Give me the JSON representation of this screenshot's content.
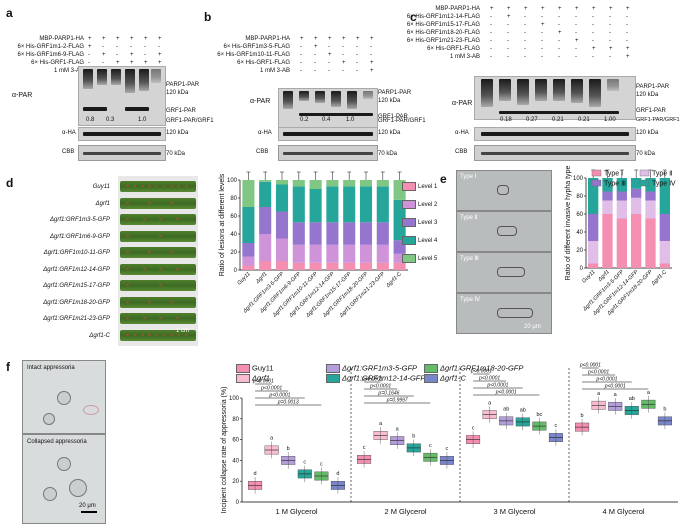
{
  "panel_a": {
    "letter": "a",
    "rows": [
      {
        "label": "MBP-PARP1-HA",
        "signs": [
          "+",
          "+",
          "+",
          "+",
          "+",
          "+"
        ]
      },
      {
        "label": "6× His-GRF1m1-2-FLAG",
        "signs": [
          "+",
          "-",
          "-",
          "-",
          "-",
          "-"
        ]
      },
      {
        "label": "6× His-GRF1m6-9-FLAG",
        "signs": [
          "-",
          "+",
          "-",
          "+",
          "-",
          "+"
        ]
      },
      {
        "label": "6× His-GRF1-FLAG",
        "signs": [
          "-",
          "-",
          "+",
          "+",
          "+",
          "+"
        ]
      },
      {
        "label": "1 mM 3-AB",
        "signs": [
          "-",
          "-",
          "-",
          "-",
          "+",
          "-"
        ]
      }
    ],
    "ylabel": "α-PAR",
    "right_labels": [
      "PARP1-PAR",
      "120 kDa",
      "GRF1-PAR",
      "GRF1-PAR/GRF1"
    ],
    "ratios": [
      "0.8",
      "0.3",
      "1.0"
    ],
    "ha_label": "α-HA",
    "ha_kda": "120 kDa",
    "cbb_label": "CBB",
    "cbb_kda": "70 kDa"
  },
  "panel_b": {
    "letter": "b",
    "rows": [
      {
        "label": "MBP-PARP1-HA",
        "signs": [
          "+",
          "+",
          "+",
          "+",
          "+",
          "+"
        ]
      },
      {
        "label": "6× His-GRF1m3-5-FLAG",
        "signs": [
          "-",
          "+",
          "-",
          "-",
          "-",
          "-"
        ]
      },
      {
        "label": "6× His-GRF1m10-11-FLAG",
        "signs": [
          "-",
          "-",
          "+",
          "-",
          "-",
          "-"
        ]
      },
      {
        "label": "6× His-GRF1-FLAG",
        "signs": [
          "-",
          "-",
          "-",
          "+",
          "-",
          "+"
        ]
      },
      {
        "label": "1 mM 3-AB",
        "signs": [
          "-",
          "-",
          "-",
          "-",
          "-",
          "+"
        ]
      }
    ],
    "ylabel": "α-PAR",
    "right_labels": [
      "PARP1-PAR",
      "120 kDa",
      "GRF1-PAR",
      "GRF1-PAR/GRF1"
    ],
    "ratios": [
      "0.2",
      "0.4",
      "1.0"
    ],
    "ha_label": "α-HA",
    "ha_kda": "120 kDa",
    "cbb_label": "CBB",
    "cbb_kda": "70 kDa"
  },
  "panel_c": {
    "letter": "c",
    "rows": [
      {
        "label": "MBP-PARP1-HA",
        "signs": [
          "+",
          "+",
          "+",
          "+",
          "+",
          "+",
          "+",
          "+",
          "+"
        ]
      },
      {
        "label": "6× His-GRF1m12-14-FLAG",
        "signs": [
          "-",
          "+",
          "-",
          "-",
          "-",
          "-",
          "-",
          "-",
          "-"
        ]
      },
      {
        "label": "6× His-GRF1m15-17-FLAG",
        "signs": [
          "-",
          "-",
          "-",
          "+",
          "-",
          "-",
          "-",
          "-",
          "-"
        ]
      },
      {
        "label": "6× His-GRF1m18-20-FLAG",
        "signs": [
          "-",
          "-",
          "-",
          "-",
          "+",
          "-",
          "-",
          "-",
          "-"
        ]
      },
      {
        "label": "6× His-GRF1m21-23-FLAG",
        "signs": [
          "-",
          "-",
          "-",
          "-",
          "-",
          "+",
          "-",
          "-",
          "-"
        ]
      },
      {
        "label": "6× His-GRF1-FLAG",
        "signs": [
          "-",
          "-",
          "-",
          "-",
          "-",
          "-",
          "+",
          "+",
          "+"
        ]
      },
      {
        "label": "1 mM 3-AB",
        "signs": [
          "-",
          "-",
          "-",
          "-",
          "-",
          "-",
          "-",
          "-",
          "+"
        ]
      }
    ],
    "ylabel": "α-PAR",
    "right_labels": [
      "PARP1-PAR",
      "120 kDa",
      "GRF1-PAR",
      "GRF1-PAR/GRF1"
    ],
    "ratios": [
      "0.18",
      "0.27",
      "0.21",
      "0.21",
      "1.00"
    ],
    "ha_label": "α-HA",
    "ha_kda": "120 kDa",
    "cbb_label": "CBB",
    "cbb_kda": "70 kDa"
  },
  "panel_d": {
    "letter": "d",
    "strains": [
      "Guy11",
      "Δgrf1",
      "Δgrf1:GRF1m3-5-GFP",
      "Δgrf1:GRF1m6-9-GFP",
      "Δgrf1:GRF1m10-11-GFP",
      "Δgrf1:GRF1m12-14-GFP",
      "Δgrf1:GRF1m15-17-GFP",
      "Δgrf1:GRF1m18-20-GFP",
      "Δgrf1:GRF1m21-23-GFP",
      "Δgrf1-C"
    ],
    "scale": "1 cm"
  },
  "panel_e": {
    "letter": "e",
    "types": [
      "Type Ⅰ",
      "Type Ⅱ",
      "Type Ⅲ",
      "Type Ⅳ"
    ],
    "scale": "20 μm"
  },
  "panel_f": {
    "letter": "f",
    "intact": "Intact appressoria",
    "collapsed": "Collapsed appressoria",
    "scale": "20 μm"
  },
  "chart_data": [
    {
      "type": "bar",
      "stacked": true,
      "ylabel": "Ratio of lesions at different levels",
      "ylim": [
        0,
        100
      ],
      "yticks": [
        0,
        20,
        40,
        60,
        80,
        100
      ],
      "categories": [
        "Guy11",
        "Δgrf1",
        "Δgrf1:GRF1m3-5-GFP",
        "Δgrf1:GRF1m6-9-GFP",
        "Δgrf1:GRF1m10-11-GFP",
        "Δgrf1:GRF1m12-14-GFP",
        "Δgrf1:GRF1m15-17-GFP",
        "Δgrf1:GRF1m18-20-GFP",
        "Δgrf1:GRF1m21-23-GFP",
        "Δgrf1-C"
      ],
      "series": [
        {
          "name": "Level 1",
          "color": "#f48fb1",
          "values": [
            5,
            10,
            10,
            8,
            8,
            8,
            8,
            8,
            8,
            8
          ]
        },
        {
          "name": "Level 2",
          "color": "#ce93d8",
          "values": [
            10,
            30,
            25,
            20,
            20,
            20,
            20,
            20,
            20,
            10
          ]
        },
        {
          "name": "Level 3",
          "color": "#9575cd",
          "values": [
            15,
            30,
            30,
            25,
            25,
            25,
            25,
            25,
            25,
            15
          ]
        },
        {
          "name": "Level 4",
          "color": "#26a69a",
          "values": [
            40,
            28,
            30,
            40,
            37,
            40,
            40,
            40,
            40,
            45
          ]
        },
        {
          "name": "Level 5",
          "color": "#81c784",
          "values": [
            30,
            2,
            5,
            7,
            10,
            7,
            7,
            7,
            7,
            22
          ]
        }
      ]
    },
    {
      "type": "bar",
      "stacked": true,
      "ylabel": "Ratio of different invasive hypha type",
      "ylim": [
        0,
        100
      ],
      "yticks": [
        0,
        20,
        40,
        60,
        80,
        100
      ],
      "categories": [
        "Guy11",
        "Δgrf1",
        "Δgrf1:GRF1m3-5-GFP",
        "Δgrf1:GRF1m12-14-GFP",
        "Δgrf1:GRF1m18-20-GFP",
        "Δgrf1-C"
      ],
      "series": [
        {
          "name": "Type Ⅰ",
          "color": "#f48fb1",
          "values": [
            5,
            60,
            55,
            60,
            55,
            5
          ]
        },
        {
          "name": "Type Ⅱ",
          "color": "#e1bee7",
          "values": [
            25,
            15,
            20,
            18,
            20,
            25
          ]
        },
        {
          "name": "Type Ⅲ",
          "color": "#9575cd",
          "values": [
            30,
            10,
            10,
            10,
            10,
            30
          ]
        },
        {
          "name": "Type Ⅳ",
          "color": "#26a69a",
          "values": [
            40,
            15,
            15,
            12,
            15,
            40
          ]
        }
      ]
    },
    {
      "type": "box",
      "ylabel": "Incipient collapse rate of appressoria (%)",
      "ylim": [
        0,
        100
      ],
      "yticks": [
        0,
        20,
        40,
        60,
        80,
        100
      ],
      "groups": [
        "1 M Glycerol",
        "2 M Glycerol",
        "3 M Glycerol",
        "4 M Glycerol"
      ],
      "series": [
        {
          "name": "Guy11",
          "color": "#f48fb1",
          "medians": [
            16,
            41,
            60,
            72
          ],
          "letters": [
            "d",
            "c",
            "c",
            "b"
          ]
        },
        {
          "name": "Δgrf1",
          "color": "#f8bbd0",
          "medians": [
            50,
            64,
            84,
            93
          ],
          "letters": [
            "a",
            "a",
            "a",
            "a"
          ]
        },
        {
          "name": "Δgrf1:GRF1m3-5-GFP",
          "color": "#b39ddb",
          "medians": [
            40,
            59,
            78,
            92
          ],
          "letters": [
            "b",
            "a",
            "ab",
            "a"
          ]
        },
        {
          "name": "Δgrf1:GRF1m12-14-GFP",
          "color": "#26a69a",
          "medians": [
            27,
            52,
            77,
            88
          ],
          "letters": [
            "c",
            "b",
            "ab",
            "ab"
          ]
        },
        {
          "name": "Δgrf1:GRF1m18-20-GFP",
          "color": "#66bb6a",
          "medians": [
            25,
            43,
            73,
            94
          ],
          "letters": [
            "c",
            "c",
            "bc",
            "a"
          ]
        },
        {
          "name": "Δgrf1-C",
          "color": "#7986cb",
          "medians": [
            16,
            40,
            62,
            78
          ],
          "letters": [
            "d",
            "c",
            "c",
            "b"
          ]
        }
      ],
      "pvalues": {
        "g1": [
          "p=0.0013",
          "p<0.0001",
          "p<0.0001",
          "p<0.0001"
        ],
        "g2": [
          "p=0.9997",
          "p=0.1646",
          "p<0.0001",
          "p<0.0001"
        ],
        "g3": [
          "p<0.0001",
          "p<0.0001",
          "p<0.0001",
          "p<0.0001"
        ],
        "g4": [
          "p<0.0001",
          "p<0.0001",
          "p<0.0001",
          "p<0.0001"
        ]
      }
    }
  ]
}
